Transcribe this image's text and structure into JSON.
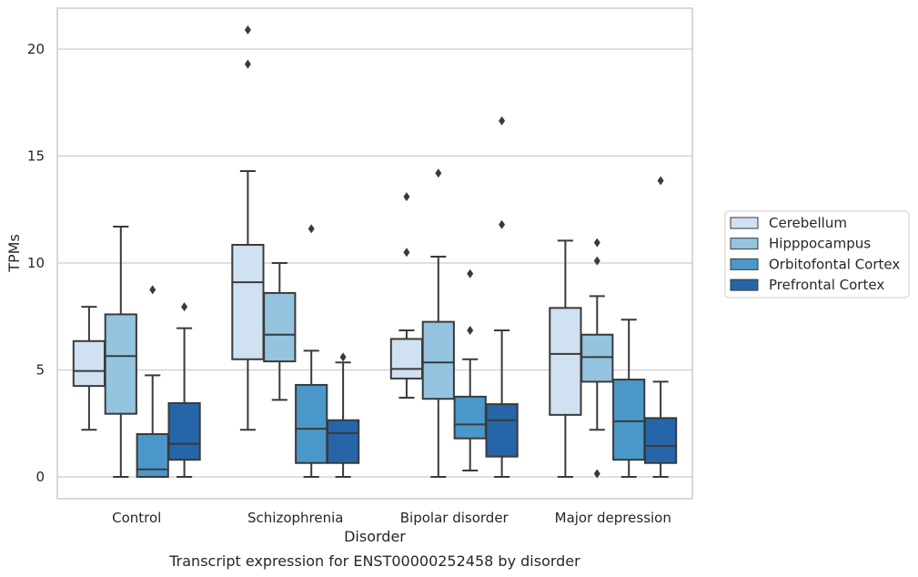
{
  "chart_data": {
    "type": "box",
    "xlabel": "Disorder",
    "ylabel": "TPMs",
    "caption": "Transcript expression for ENST00000252458 by disorder",
    "ylim": [
      -1,
      22
    ],
    "yticks": [
      0,
      5,
      10,
      15,
      20
    ],
    "grid": true,
    "legend_position": "right",
    "categories": [
      "Control",
      "Schizophrenia",
      "Bipolar disorder",
      "Major depression"
    ],
    "series": [
      {
        "name": "Cerebellum",
        "color": "#d0e1f2",
        "boxes": [
          {
            "whislo": 2.2,
            "q1": 4.25,
            "med": 4.95,
            "q3": 6.35,
            "whishi": 7.95,
            "fliers": []
          },
          {
            "whislo": 2.2,
            "q1": 5.5,
            "med": 9.1,
            "q3": 10.85,
            "whishi": 14.3,
            "fliers": [
              19.3,
              20.9
            ]
          },
          {
            "whislo": 3.7,
            "q1": 4.6,
            "med": 5.05,
            "q3": 6.45,
            "whishi": 6.85,
            "fliers": [
              10.5,
              13.1
            ]
          },
          {
            "whislo": 0.0,
            "q1": 2.9,
            "med": 5.75,
            "q3": 7.9,
            "whishi": 11.05,
            "fliers": []
          }
        ]
      },
      {
        "name": "Hipppocampus",
        "color": "#94c4df",
        "boxes": [
          {
            "whislo": 0.0,
            "q1": 2.95,
            "med": 5.65,
            "q3": 7.6,
            "whishi": 11.7,
            "fliers": []
          },
          {
            "whislo": 3.6,
            "q1": 5.4,
            "med": 6.65,
            "q3": 8.6,
            "whishi": 10.0,
            "fliers": []
          },
          {
            "whislo": 0.0,
            "q1": 3.65,
            "med": 5.35,
            "q3": 7.25,
            "whishi": 10.3,
            "fliers": [
              14.2
            ]
          },
          {
            "whislo": 2.2,
            "q1": 4.45,
            "med": 5.6,
            "q3": 6.65,
            "whishi": 8.45,
            "fliers": [
              0.15,
              10.1,
              10.95
            ]
          }
        ]
      },
      {
        "name": "Orbitofontal Cortex",
        "color": "#4a98c9",
        "boxes": [
          {
            "whislo": 0.0,
            "q1": 0.0,
            "med": 0.35,
            "q3": 2.0,
            "whishi": 4.75,
            "fliers": [
              8.75
            ]
          },
          {
            "whislo": 0.0,
            "q1": 0.65,
            "med": 2.25,
            "q3": 4.3,
            "whishi": 5.9,
            "fliers": [
              11.6
            ]
          },
          {
            "whislo": 0.3,
            "q1": 1.8,
            "med": 2.45,
            "q3": 3.75,
            "whishi": 5.5,
            "fliers": [
              6.85,
              9.5
            ]
          },
          {
            "whislo": 0.0,
            "q1": 0.8,
            "med": 2.6,
            "q3": 4.55,
            "whishi": 7.35,
            "fliers": []
          }
        ]
      },
      {
        "name": "Prefrontal Cortex",
        "color": "#2666a8",
        "boxes": [
          {
            "whislo": 0.0,
            "q1": 0.8,
            "med": 1.55,
            "q3": 3.45,
            "whishi": 6.95,
            "fliers": [
              7.95
            ]
          },
          {
            "whislo": 0.0,
            "q1": 0.65,
            "med": 2.05,
            "q3": 2.65,
            "whishi": 5.35,
            "fliers": [
              5.6
            ]
          },
          {
            "whislo": 0.0,
            "q1": 0.95,
            "med": 2.65,
            "q3": 3.4,
            "whishi": 6.85,
            "fliers": [
              11.8,
              16.65
            ]
          },
          {
            "whislo": 0.0,
            "q1": 0.65,
            "med": 1.45,
            "q3": 2.75,
            "whishi": 4.45,
            "fliers": [
              13.85
            ]
          }
        ]
      }
    ]
  }
}
